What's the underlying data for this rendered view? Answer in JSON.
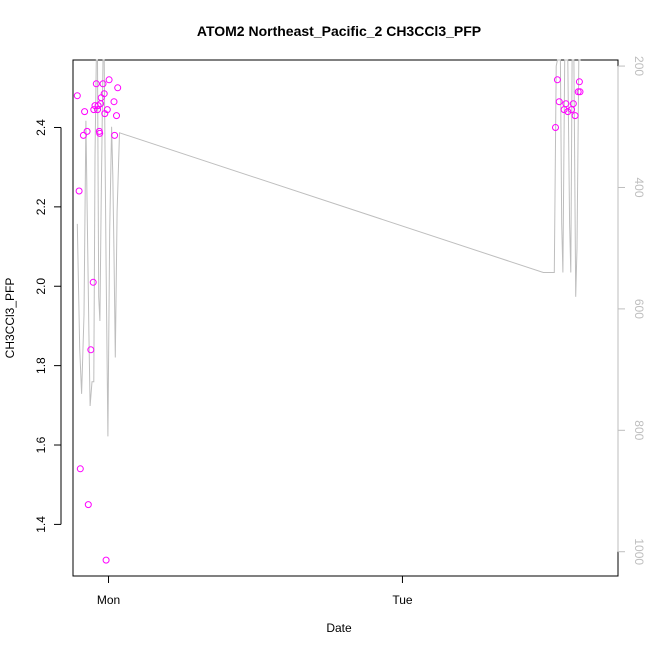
{
  "chart_data": {
    "type": "scatter",
    "title": "ATOM2 Northeast_Pacific_2 CH3CCl3_PFP",
    "xlabel": "Date",
    "ylabel": "CH3CCl3_PFP",
    "x_ticks": [
      {
        "value": "Sun 24:00",
        "label": "Mon"
      },
      {
        "value": "Mon 24:00",
        "label": "Tue"
      }
    ],
    "y_ticks": [
      1.4,
      1.6,
      1.8,
      2.0,
      2.2,
      2.4
    ],
    "ylim": [
      1.27,
      2.57
    ],
    "y2_ticks": [
      200,
      400,
      600,
      800,
      1000
    ],
    "y2lim": [
      1040,
      190
    ],
    "xlim_hours": [
      -2.9,
      41.6
    ],
    "grid": false,
    "colors": {
      "points": "#ff00ff",
      "line": "#bebebe",
      "axis": "#000000",
      "axis_right": "#bebebe"
    },
    "series": [
      {
        "points": [
          [
            -2.55,
            2.48
          ],
          [
            -2.4,
            2.24
          ],
          [
            -2.3,
            1.54
          ],
          [
            -2.05,
            2.38
          ],
          [
            -1.95,
            2.44
          ],
          [
            -1.75,
            2.39
          ],
          [
            -1.65,
            1.45
          ],
          [
            -1.45,
            1.84
          ],
          [
            -1.25,
            2.01
          ],
          [
            -1.2,
            2.445
          ],
          [
            -1.1,
            2.455
          ],
          [
            -1.0,
            2.51
          ],
          [
            -0.9,
            2.445
          ],
          [
            -0.85,
            2.455
          ],
          [
            -0.75,
            2.39
          ],
          [
            -0.72,
            2.385
          ],
          [
            -0.65,
            2.46
          ],
          [
            -0.6,
            2.475
          ],
          [
            -0.45,
            2.51
          ],
          [
            -0.35,
            2.485
          ],
          [
            -0.3,
            2.435
          ],
          [
            -0.2,
            1.31
          ],
          [
            -0.1,
            2.445
          ],
          [
            0.05,
            2.52
          ],
          [
            0.45,
            2.465
          ],
          [
            0.5,
            2.38
          ],
          [
            0.65,
            2.43
          ],
          [
            0.75,
            2.5
          ],
          [
            36.5,
            2.4
          ],
          [
            36.65,
            2.52
          ],
          [
            36.8,
            2.465
          ],
          [
            37.2,
            2.445
          ],
          [
            37.35,
            2.46
          ],
          [
            37.5,
            2.44
          ],
          [
            37.8,
            2.445
          ],
          [
            37.95,
            2.46
          ],
          [
            38.1,
            2.43
          ],
          [
            38.35,
            2.49
          ],
          [
            38.45,
            2.515
          ],
          [
            38.5,
            2.49
          ]
        ]
      },
      {
        "axis": "right",
        "points": [
          [
            -2.55,
            460
          ],
          [
            -2.35,
            665
          ],
          [
            -2.2,
            740
          ],
          [
            -2.0,
            610
          ],
          [
            -1.85,
            290
          ],
          [
            -1.6,
            640
          ],
          [
            -1.5,
            760
          ],
          [
            -1.35,
            720
          ],
          [
            -1.2,
            720
          ],
          [
            -1.1,
            350
          ],
          [
            -1.0,
            190
          ],
          [
            -0.9,
            190
          ],
          [
            -0.8,
            580
          ],
          [
            -0.7,
            620
          ],
          [
            -0.6,
            420
          ],
          [
            -0.45,
            190
          ],
          [
            -0.35,
            190
          ],
          [
            -0.2,
            530
          ],
          [
            -0.05,
            810
          ],
          [
            0.1,
            470
          ],
          [
            0.25,
            300
          ],
          [
            0.35,
            380
          ],
          [
            0.45,
            510
          ],
          [
            0.55,
            680
          ],
          [
            0.7,
            440
          ],
          [
            0.9,
            310
          ],
          [
            35.5,
            540
          ],
          [
            36.4,
            540
          ],
          [
            36.55,
            200
          ],
          [
            36.65,
            190
          ],
          [
            36.9,
            190
          ],
          [
            37.0,
            460
          ],
          [
            37.1,
            540
          ],
          [
            37.25,
            190
          ],
          [
            37.5,
            190
          ],
          [
            37.65,
            460
          ],
          [
            37.75,
            540
          ],
          [
            37.85,
            190
          ],
          [
            38.0,
            190
          ],
          [
            38.15,
            580
          ],
          [
            38.25,
            500
          ],
          [
            38.4,
            190
          ],
          [
            38.55,
            190
          ]
        ]
      }
    ]
  }
}
